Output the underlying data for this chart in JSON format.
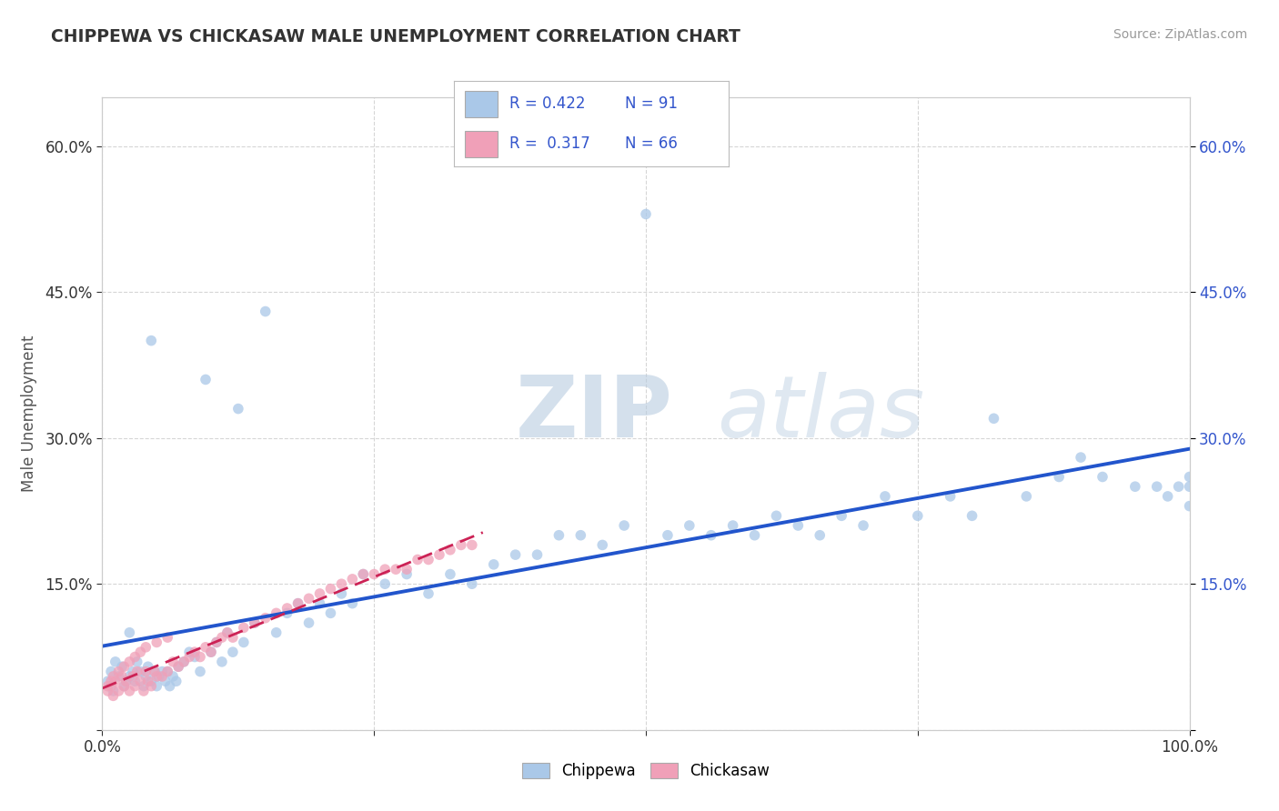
{
  "title": "CHIPPEWA VS CHICKASAW MALE UNEMPLOYMENT CORRELATION CHART",
  "source": "Source: ZipAtlas.com",
  "ylabel": "Male Unemployment",
  "xlim": [
    0,
    1.0
  ],
  "ylim": [
    0,
    0.65
  ],
  "xtick_positions": [
    0.0,
    0.25,
    0.5,
    0.75,
    1.0
  ],
  "xtick_labels": [
    "0.0%",
    "",
    "",
    "",
    "100.0%"
  ],
  "ytick_positions": [
    0.0,
    0.15,
    0.3,
    0.45,
    0.6
  ],
  "ytick_labels": [
    "",
    "15.0%",
    "30.0%",
    "45.0%",
    "60.0%"
  ],
  "chippewa_color": "#aac8e8",
  "chickasaw_color": "#f0a0b8",
  "trend_chippewa_color": "#2255cc",
  "trend_chickasaw_color": "#cc2255",
  "R_chippewa": 0.422,
  "N_chippewa": 91,
  "R_chickasaw": 0.317,
  "N_chickasaw": 66,
  "watermark_zip": "ZIP",
  "watermark_atlas": "atlas",
  "chippewa_x": [
    0.005,
    0.008,
    0.01,
    0.012,
    0.015,
    0.018,
    0.02,
    0.022,
    0.025,
    0.028,
    0.03,
    0.032,
    0.035,
    0.038,
    0.04,
    0.042,
    0.045,
    0.048,
    0.05,
    0.052,
    0.055,
    0.058,
    0.06,
    0.062,
    0.065,
    0.068,
    0.07,
    0.075,
    0.08,
    0.085,
    0.09,
    0.095,
    0.1,
    0.105,
    0.11,
    0.115,
    0.12,
    0.125,
    0.13,
    0.14,
    0.15,
    0.16,
    0.17,
    0.18,
    0.19,
    0.2,
    0.21,
    0.22,
    0.23,
    0.24,
    0.26,
    0.28,
    0.3,
    0.32,
    0.34,
    0.36,
    0.38,
    0.4,
    0.42,
    0.44,
    0.46,
    0.48,
    0.5,
    0.52,
    0.54,
    0.56,
    0.58,
    0.6,
    0.62,
    0.64,
    0.66,
    0.68,
    0.7,
    0.72,
    0.75,
    0.78,
    0.8,
    0.82,
    0.85,
    0.88,
    0.9,
    0.92,
    0.95,
    0.97,
    0.98,
    0.99,
    1.0,
    1.0,
    1.0,
    0.025,
    0.045
  ],
  "chippewa_y": [
    0.05,
    0.06,
    0.04,
    0.07,
    0.055,
    0.065,
    0.045,
    0.05,
    0.055,
    0.06,
    0.05,
    0.07,
    0.06,
    0.045,
    0.055,
    0.065,
    0.05,
    0.06,
    0.045,
    0.055,
    0.06,
    0.05,
    0.06,
    0.045,
    0.055,
    0.05,
    0.065,
    0.07,
    0.08,
    0.075,
    0.06,
    0.36,
    0.08,
    0.09,
    0.07,
    0.1,
    0.08,
    0.33,
    0.09,
    0.11,
    0.43,
    0.1,
    0.12,
    0.13,
    0.11,
    0.13,
    0.12,
    0.14,
    0.13,
    0.16,
    0.15,
    0.16,
    0.14,
    0.16,
    0.15,
    0.17,
    0.18,
    0.18,
    0.2,
    0.2,
    0.19,
    0.21,
    0.53,
    0.2,
    0.21,
    0.2,
    0.21,
    0.2,
    0.22,
    0.21,
    0.2,
    0.22,
    0.21,
    0.24,
    0.22,
    0.24,
    0.22,
    0.32,
    0.24,
    0.26,
    0.28,
    0.26,
    0.25,
    0.25,
    0.24,
    0.25,
    0.26,
    0.23,
    0.25,
    0.1,
    0.4
  ],
  "chickasaw_x": [
    0.005,
    0.008,
    0.01,
    0.012,
    0.015,
    0.018,
    0.02,
    0.022,
    0.025,
    0.028,
    0.03,
    0.032,
    0.035,
    0.038,
    0.04,
    0.042,
    0.045,
    0.048,
    0.05,
    0.055,
    0.06,
    0.065,
    0.07,
    0.075,
    0.08,
    0.085,
    0.09,
    0.095,
    0.1,
    0.105,
    0.11,
    0.115,
    0.12,
    0.13,
    0.14,
    0.15,
    0.16,
    0.17,
    0.18,
    0.19,
    0.2,
    0.21,
    0.22,
    0.23,
    0.24,
    0.25,
    0.26,
    0.27,
    0.28,
    0.29,
    0.3,
    0.31,
    0.32,
    0.33,
    0.34,
    0.005,
    0.008,
    0.01,
    0.015,
    0.02,
    0.025,
    0.03,
    0.035,
    0.04,
    0.05,
    0.06
  ],
  "chickasaw_y": [
    0.04,
    0.045,
    0.035,
    0.05,
    0.04,
    0.055,
    0.045,
    0.05,
    0.04,
    0.055,
    0.045,
    0.06,
    0.05,
    0.04,
    0.06,
    0.05,
    0.045,
    0.06,
    0.055,
    0.055,
    0.06,
    0.07,
    0.065,
    0.07,
    0.075,
    0.08,
    0.075,
    0.085,
    0.08,
    0.09,
    0.095,
    0.1,
    0.095,
    0.105,
    0.11,
    0.115,
    0.12,
    0.125,
    0.13,
    0.135,
    0.14,
    0.145,
    0.15,
    0.155,
    0.16,
    0.16,
    0.165,
    0.165,
    0.165,
    0.175,
    0.175,
    0.18,
    0.185,
    0.19,
    0.19,
    0.045,
    0.05,
    0.055,
    0.06,
    0.065,
    0.07,
    0.075,
    0.08,
    0.085,
    0.09,
    0.095
  ]
}
